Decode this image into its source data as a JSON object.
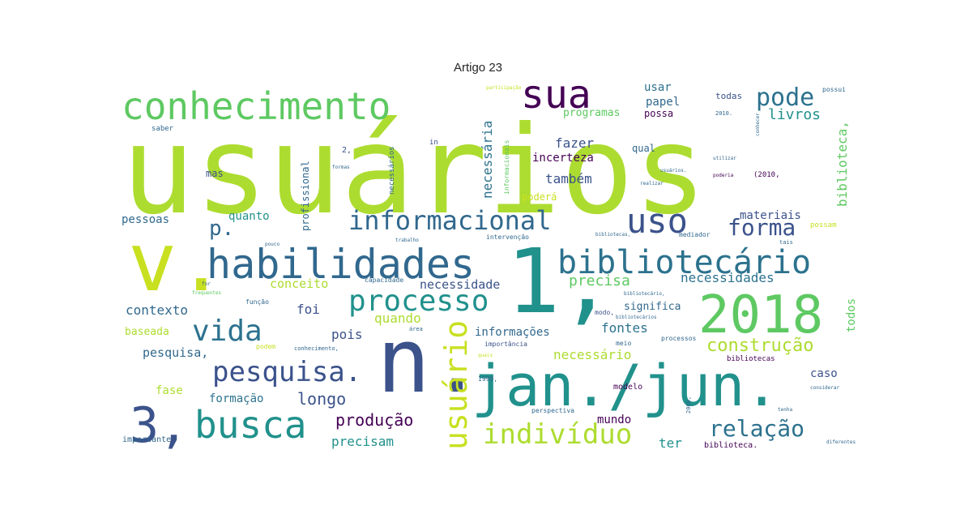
{
  "chart_data": {
    "type": "wordcloud",
    "title": "Artigo 23",
    "words": [
      {
        "text": "usuários",
        "color": "#addc30"
      },
      {
        "text": "conhecimento",
        "color": "#5ec962"
      },
      {
        "text": "sua",
        "color": "#440154"
      },
      {
        "text": "pode",
        "color": "#2c728e"
      },
      {
        "text": "v.",
        "color": "#c8e020"
      },
      {
        "text": "habilidades",
        "color": "#31688e"
      },
      {
        "text": "1,",
        "color": "#21918c"
      },
      {
        "text": "bibliotecário",
        "color": "#2c728e"
      },
      {
        "text": "uso",
        "color": "#3b528b"
      },
      {
        "text": "informacional",
        "color": "#31688e"
      },
      {
        "text": "2018",
        "color": "#5ec962"
      },
      {
        "text": "processo",
        "color": "#21918c"
      },
      {
        "text": "vida",
        "color": "#2c728e"
      },
      {
        "text": "n.",
        "color": "#3b528b"
      },
      {
        "text": "jan./jun.",
        "color": "#21918c"
      },
      {
        "text": "3,",
        "color": "#3b528b"
      },
      {
        "text": "busca",
        "color": "#21918c"
      },
      {
        "text": "pesquisa.",
        "color": "#3b528b"
      },
      {
        "text": "usuário",
        "color": "#c8e020"
      },
      {
        "text": "indivíduo",
        "color": "#addc30"
      },
      {
        "text": "relação",
        "color": "#2c728e"
      },
      {
        "text": "forma",
        "color": "#3b528b"
      },
      {
        "text": "construção",
        "color": "#addc30"
      },
      {
        "text": "produção",
        "color": "#440154"
      },
      {
        "text": "p.",
        "color": "#31688e"
      },
      {
        "text": "necessária",
        "color": "#2c728e"
      },
      {
        "text": "biblioteca,",
        "color": "#5ec962"
      },
      {
        "text": "profissional",
        "color": "#31688e"
      },
      {
        "text": "incerteza",
        "color": "#440154"
      },
      {
        "text": "fazer",
        "color": "#3b528b"
      },
      {
        "text": "também",
        "color": "#3b528b"
      },
      {
        "text": "livros",
        "color": "#21918c"
      },
      {
        "text": "usar",
        "color": "#2c728e"
      },
      {
        "text": "papel",
        "color": "#31688e"
      },
      {
        "text": "todas",
        "color": "#3b528b"
      },
      {
        "text": "programas",
        "color": "#5ec962"
      },
      {
        "text": "possa",
        "color": "#440154"
      },
      {
        "text": "qual",
        "color": "#31688e"
      },
      {
        "text": "materiais",
        "color": "#3b528b"
      },
      {
        "text": "precisa",
        "color": "#5ec962"
      },
      {
        "text": "necessidades",
        "color": "#2c728e"
      },
      {
        "text": "necessidade",
        "color": "#3b528b"
      },
      {
        "text": "conceito",
        "color": "#addc30"
      },
      {
        "text": "contexto",
        "color": "#31688e"
      },
      {
        "text": "foi",
        "color": "#3b528b"
      },
      {
        "text": "quando",
        "color": "#addc30"
      },
      {
        "text": "pois",
        "color": "#3b528b"
      },
      {
        "text": "informações",
        "color": "#31688e"
      },
      {
        "text": "fontes",
        "color": "#2c728e"
      },
      {
        "text": "significa",
        "color": "#31688e"
      },
      {
        "text": "todos",
        "color": "#5ec962"
      },
      {
        "text": "necessário",
        "color": "#addc30"
      },
      {
        "text": "caso",
        "color": "#3b528b"
      },
      {
        "text": "modelo",
        "color": "#440154"
      },
      {
        "text": "longo",
        "color": "#3b528b"
      },
      {
        "text": "formação",
        "color": "#2c728e"
      },
      {
        "text": "fase",
        "color": "#addc30"
      },
      {
        "text": "mundo",
        "color": "#440154"
      },
      {
        "text": "ter",
        "color": "#21918c"
      },
      {
        "text": "precisam",
        "color": "#21918c"
      },
      {
        "text": "pessoas",
        "color": "#31688e"
      },
      {
        "text": "quanto",
        "color": "#21918c"
      },
      {
        "text": "baseada",
        "color": "#addc30"
      },
      {
        "text": "pesquisa,",
        "color": "#31688e"
      },
      {
        "text": "importante",
        "color": "#31688e"
      },
      {
        "text": "mas",
        "color": "#3b528b"
      },
      {
        "text": "poderá",
        "color": "#c8e020"
      },
      {
        "text": "biblioteca.",
        "color": "#440154"
      },
      {
        "text": "bibliotecas",
        "color": "#440154"
      },
      {
        "text": "meio",
        "color": "#31688e"
      },
      {
        "text": "importância",
        "color": "#3b528b"
      },
      {
        "text": "possam",
        "color": "#c8e020"
      },
      {
        "text": "necessários",
        "color": "#31688e"
      },
      {
        "text": "informacionais",
        "color": "#5ec962"
      },
      {
        "text": "in",
        "color": "#3b528b"
      },
      {
        "text": "2,",
        "color": "#3b528b"
      },
      {
        "text": "saber",
        "color": "#31688e"
      },
      {
        "text": "função",
        "color": "#31688e"
      },
      {
        "text": "capacidade",
        "color": "#31688e"
      },
      {
        "text": "intervenção",
        "color": "#31688e"
      },
      {
        "text": "conhecimento,",
        "color": "#31688e"
      },
      {
        "text": "podem",
        "color": "#c8e020"
      },
      {
        "text": "área",
        "color": "#31688e"
      },
      {
        "text": "modo,",
        "color": "#3b528b"
      },
      {
        "text": "perspectiva",
        "color": "#31688e"
      },
      {
        "text": "processos",
        "color": "#31688e"
      },
      {
        "text": "1999,",
        "color": "#31688e"
      },
      {
        "text": "2008,",
        "color": "#31688e"
      },
      {
        "text": "2010.",
        "color": "#31688e"
      },
      {
        "text": "(2010,",
        "color": "#440154"
      },
      {
        "text": "mediador",
        "color": "#31688e"
      },
      {
        "text": "tais",
        "color": "#31688e"
      },
      {
        "text": "possui",
        "color": "#31688e"
      },
      {
        "text": "conhecer",
        "color": "#31688e"
      },
      {
        "text": "utilizar",
        "color": "#31688e"
      },
      {
        "text": "usuários.",
        "color": "#31688e"
      },
      {
        "text": "realizar",
        "color": "#31688e"
      },
      {
        "text": "poderia",
        "color": "#440154"
      },
      {
        "text": "formas",
        "color": "#31688e"
      },
      {
        "text": "trabalho",
        "color": "#31688e"
      },
      {
        "text": "pouco",
        "color": "#31688e"
      },
      {
        "text": "bibliotecas,",
        "color": "#31688e"
      },
      {
        "text": "bibliotecário,",
        "color": "#31688e"
      },
      {
        "text": "bibliotecários",
        "color": "#31688e"
      },
      {
        "text": "quais",
        "color": "#c8e020"
      },
      {
        "text": "frequentes",
        "color": "#5ec962"
      },
      {
        "text": "for",
        "color": "#31688e"
      },
      {
        "text": "participação",
        "color": "#c8e020"
      },
      {
        "text": "diferentes",
        "color": "#31688e"
      },
      {
        "text": "tenha",
        "color": "#31688e"
      },
      {
        "text": "considerar",
        "color": "#31688e"
      }
    ]
  }
}
